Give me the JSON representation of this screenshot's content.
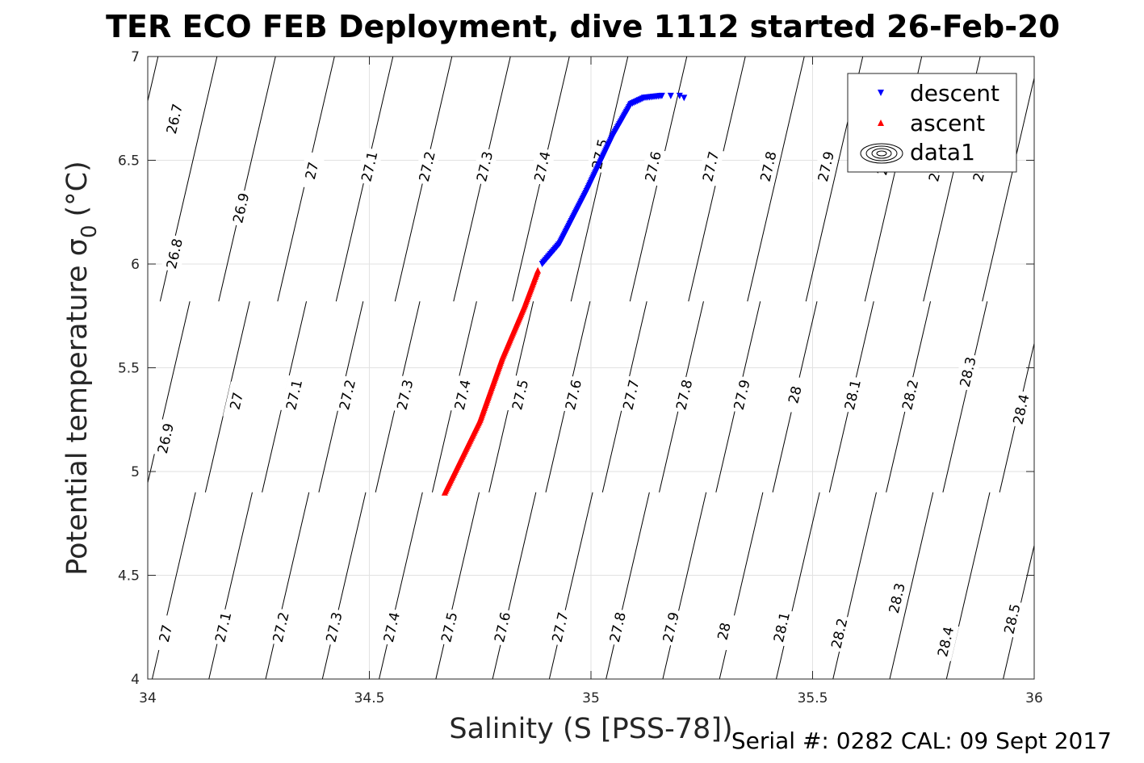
{
  "chart_data": {
    "type": "scatter",
    "title": "TER ECO FEB Deployment, dive 1112 started 26-Feb-20",
    "xlabel": "Salinity (S [PSS-78])",
    "ylabel_main": "Potential temperature σ",
    "ylabel_sub": "0",
    "ylabel_unit": "(°C)",
    "xlim": [
      34,
      36
    ],
    "ylim": [
      4,
      7
    ],
    "xticks": [
      34,
      34.5,
      35,
      35.5,
      36
    ],
    "yticks": [
      4,
      4.5,
      5,
      5.5,
      6,
      6.5,
      7
    ],
    "xtick_labels": [
      "34",
      "34.5",
      "35",
      "35.5",
      "36"
    ],
    "ytick_labels": [
      "4",
      "4.5",
      "5",
      "5.5",
      "6",
      "6.5",
      "7"
    ],
    "grid": true,
    "legend_position": "top-right",
    "series": [
      {
        "name": "descent",
        "color": "#0000ff",
        "marker": "triangle-down",
        "path": [
          [
            34.89,
            6.0
          ],
          [
            34.93,
            6.1
          ],
          [
            34.99,
            6.35
          ],
          [
            35.05,
            6.62
          ],
          [
            35.09,
            6.77
          ],
          [
            35.12,
            6.8
          ],
          [
            35.16,
            6.81
          ]
        ],
        "extra": [
          [
            35.18,
            6.81
          ],
          [
            35.2,
            6.81
          ],
          [
            35.21,
            6.8
          ]
        ]
      },
      {
        "name": "ascent",
        "color": "#ff0000",
        "marker": "triangle-up",
        "path": [
          [
            34.67,
            4.9
          ],
          [
            34.75,
            5.25
          ],
          [
            34.8,
            5.55
          ],
          [
            34.85,
            5.8
          ],
          [
            34.88,
            5.97
          ]
        ]
      },
      {
        "name": "data1",
        "type": "contour",
        "color": "#000000",
        "sets": [
          {
            "t_range": [
              5.82,
              7
            ],
            "lines": [
              {
                "level": "26.7",
                "s0": 33.895,
                "label": [
                  34.06,
                  6.7
                ]
              },
              {
                "level": "26.8",
                "s0": 34.028,
                "label": [
                  34.06,
                  6.05
                ]
              },
              {
                "level": "26.9",
                "s0": 34.16,
                "label": [
                  34.21,
                  6.27
                ]
              },
              {
                "level": "27",
                "s0": 34.293,
                "label": [
                  34.37,
                  6.45
                ]
              },
              {
                "level": "27.1",
                "s0": 34.425,
                "label": [
                  34.5,
                  6.47
                ]
              },
              {
                "level": "27.2",
                "s0": 34.558,
                "label": [
                  34.63,
                  6.47
                ]
              },
              {
                "level": "27.3",
                "s0": 34.69,
                "label": [
                  34.76,
                  6.47
                ]
              },
              {
                "level": "27.4",
                "s0": 34.823,
                "label": [
                  34.89,
                  6.47
                ]
              },
              {
                "level": "27.5",
                "s0": 34.955,
                "label": [
                  35.02,
                  6.53
                ]
              },
              {
                "level": "27.6",
                "s0": 35.088,
                "label": [
                  35.14,
                  6.47
                ]
              },
              {
                "level": "27.7",
                "s0": 35.22,
                "label": [
                  35.27,
                  6.47
                ]
              },
              {
                "level": "27.8",
                "s0": 35.353,
                "label": [
                  35.4,
                  6.47
                ]
              },
              {
                "level": "27.9",
                "s0": 35.485,
                "label": [
                  35.53,
                  6.47
                ]
              },
              {
                "level": "28",
                "s0": 35.618,
                "label": [
                  35.66,
                  6.47
                ]
              },
              {
                "level": "28.1",
                "s0": 35.75,
                "label": [
                  35.78,
                  6.47
                ]
              },
              {
                "level": "28.2",
                "s0": 35.883,
                "label": [
                  35.88,
                  6.47
                ]
              },
              {
                "level": "28.3",
                "s0": 36.015,
                "label": null
              }
            ]
          },
          {
            "t_range": [
              4.9,
              5.82
            ],
            "lines": [
              {
                "level": "26.9",
                "s0": 33.995,
                "label": [
                  34.04,
                  5.16
                ]
              },
              {
                "level": "27",
                "s0": 34.13,
                "label": [
                  34.2,
                  5.34
                ]
              },
              {
                "level": "27.1",
                "s0": 34.258,
                "label": [
                  34.33,
                  5.37
                ]
              },
              {
                "level": "27.2",
                "s0": 34.386,
                "label": [
                  34.45,
                  5.37
                ]
              },
              {
                "level": "27.3",
                "s0": 34.514,
                "label": [
                  34.58,
                  5.37
                ]
              },
              {
                "level": "27.4",
                "s0": 34.642,
                "label": [
                  34.71,
                  5.37
                ]
              },
              {
                "level": "27.5",
                "s0": 34.77,
                "label": [
                  34.84,
                  5.37
                ]
              },
              {
                "level": "27.6",
                "s0": 34.898,
                "label": [
                  34.96,
                  5.37
                ]
              },
              {
                "level": "27.7",
                "s0": 35.026,
                "label": [
                  35.09,
                  5.37
                ]
              },
              {
                "level": "27.8",
                "s0": 35.154,
                "label": [
                  35.21,
                  5.37
                ]
              },
              {
                "level": "27.9",
                "s0": 35.282,
                "label": [
                  35.34,
                  5.37
                ]
              },
              {
                "level": "28",
                "s0": 35.41,
                "label": [
                  35.46,
                  5.37
                ]
              },
              {
                "level": "28.1",
                "s0": 35.538,
                "label": [
                  35.59,
                  5.37
                ]
              },
              {
                "level": "28.2",
                "s0": 35.666,
                "label": [
                  35.72,
                  5.37
                ]
              },
              {
                "level": "28.3",
                "s0": 35.794,
                "label": [
                  35.85,
                  5.48
                ]
              },
              {
                "level": "28.4",
                "s0": 35.922,
                "label": [
                  35.97,
                  5.3
                ]
              }
            ]
          },
          {
            "t_range": [
              4,
              4.9
            ],
            "lines": [
              {
                "level": "27",
                "s0": 34.01,
                "label": [
                  34.04,
                  4.22
                ]
              },
              {
                "level": "27.1",
                "s0": 34.138,
                "label": [
                  34.17,
                  4.25
                ]
              },
              {
                "level": "27.2",
                "s0": 34.266,
                "label": [
                  34.3,
                  4.25
                ]
              },
              {
                "level": "27.3",
                "s0": 34.394,
                "label": [
                  34.42,
                  4.25
                ]
              },
              {
                "level": "27.4",
                "s0": 34.522,
                "label": [
                  34.55,
                  4.25
                ]
              },
              {
                "level": "27.5",
                "s0": 34.65,
                "label": [
                  34.68,
                  4.25
                ]
              },
              {
                "level": "27.6",
                "s0": 34.778,
                "label": [
                  34.8,
                  4.25
                ]
              },
              {
                "level": "27.7",
                "s0": 34.906,
                "label": [
                  34.93,
                  4.25
                ]
              },
              {
                "level": "27.8",
                "s0": 35.034,
                "label": [
                  35.06,
                  4.25
                ]
              },
              {
                "level": "27.9",
                "s0": 35.162,
                "label": [
                  35.18,
                  4.25
                ]
              },
              {
                "level": "28",
                "s0": 35.29,
                "label": [
                  35.3,
                  4.23
                ]
              },
              {
                "level": "28.1",
                "s0": 35.418,
                "label": [
                  35.43,
                  4.25
                ]
              },
              {
                "level": "28.2",
                "s0": 35.546,
                "label": [
                  35.56,
                  4.22
                ]
              },
              {
                "level": "28.3",
                "s0": 35.674,
                "label": [
                  35.69,
                  4.39
                ]
              },
              {
                "level": "28.4",
                "s0": 35.802,
                "label": [
                  35.8,
                  4.18
                ]
              },
              {
                "level": "28.5",
                "s0": 35.93,
                "label": [
                  35.95,
                  4.29
                ]
              }
            ]
          }
        ],
        "contour_dT_dS": 9.2
      }
    ],
    "legend_entries": [
      "descent",
      "ascent",
      "data1"
    ]
  },
  "footer": {
    "serial_text": "Serial #: 0282  CAL: 09 Sept 2017"
  }
}
